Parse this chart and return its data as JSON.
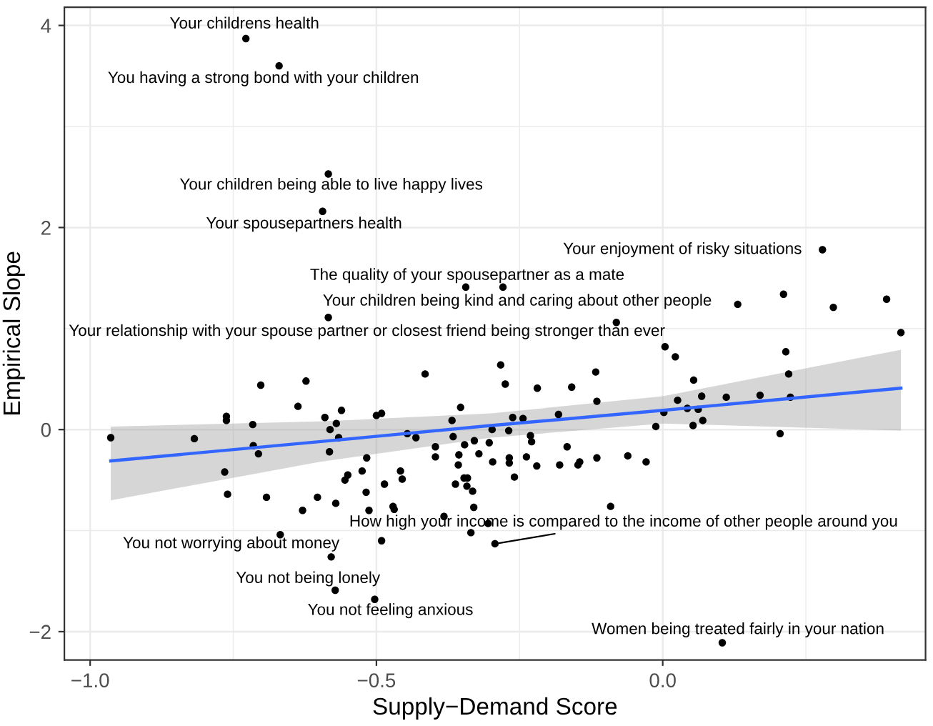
{
  "chart_data": {
    "type": "scatter",
    "xlabel": "Supply−Demand Score",
    "ylabel": "Empirical Slope",
    "xlim": [
      -1.045,
      0.459
    ],
    "ylim": [
      -2.28,
      4.18
    ],
    "xticks": [
      {
        "value": -1.0,
        "label": "−1.0"
      },
      {
        "value": -0.75,
        "label": null
      },
      {
        "value": -0.5,
        "label": "−0.5"
      },
      {
        "value": -0.25,
        "label": null
      },
      {
        "value": 0.0,
        "label": "0.0"
      },
      {
        "value": 0.25,
        "label": null
      }
    ],
    "yticks": [
      {
        "value": -2,
        "label": "−2"
      },
      {
        "value": -1,
        "label": null
      },
      {
        "value": 0,
        "label": "0"
      },
      {
        "value": 1,
        "label": null
      },
      {
        "value": 2,
        "label": "2"
      },
      {
        "value": 3,
        "label": null
      },
      {
        "value": 4,
        "label": "4"
      }
    ],
    "grid": true,
    "marker": "circle",
    "series": [
      {
        "color": "#000000",
        "x": [
          -0.964,
          -0.818,
          -0.762,
          -0.762,
          -0.765,
          -0.76,
          -0.702,
          -0.716,
          -0.715,
          -0.706,
          -0.692,
          -0.668,
          -0.637,
          -0.629,
          -0.623,
          -0.603,
          -0.59,
          -0.581,
          -0.582,
          -0.579,
          -0.57,
          -0.566,
          -0.561,
          -0.571,
          -0.555,
          -0.55,
          -0.572,
          -0.525,
          -0.517,
          -0.518,
          -0.513,
          -0.503,
          -0.5,
          -0.491,
          -0.491,
          -0.486,
          -0.471,
          -0.469,
          -0.458,
          -0.455,
          -0.446,
          -0.431,
          -0.415,
          -0.397,
          -0.397,
          -0.382,
          -0.368,
          -0.366,
          -0.353,
          -0.356,
          -0.357,
          -0.362,
          -0.346,
          -0.347,
          -0.341,
          -0.342,
          -0.332,
          -0.329,
          -0.33,
          -0.321,
          -0.335,
          -0.303,
          -0.305,
          -0.298,
          -0.297,
          -0.293,
          -0.283,
          -0.275,
          -0.219,
          -0.159,
          -0.117,
          -0.115,
          -0.182,
          -0.262,
          -0.244,
          -0.269,
          -0.231,
          -0.229,
          -0.167,
          -0.268,
          -0.268,
          -0.259,
          -0.238,
          -0.22,
          -0.18,
          -0.148,
          -0.145,
          -0.115,
          -0.091,
          -0.061,
          -0.029,
          -0.012,
          0.002,
          0.026,
          0.043,
          0.054,
          0.053,
          0.062,
          0.068,
          0.07,
          0.111,
          0.17,
          0.104,
          0.004,
          0.022,
          0.215,
          0.22,
          0.223,
          0.205,
          0.416,
          -0.728,
          -0.67,
          -0.584,
          -0.594,
          -0.344,
          -0.279,
          -0.584,
          -0.081,
          0.279,
          0.131,
          0.211,
          0.298,
          0.391
        ],
        "values": [
          -0.08,
          -0.09,
          0.13,
          0.09,
          -0.42,
          -0.64,
          0.44,
          0.05,
          -0.16,
          -0.24,
          -0.67,
          -1.04,
          0.23,
          -0.8,
          0.48,
          -0.67,
          0.12,
          0.0,
          -0.22,
          -1.26,
          0.06,
          -0.08,
          0.19,
          -0.73,
          -0.5,
          -0.45,
          -1.59,
          -0.41,
          -0.28,
          -0.62,
          -0.8,
          -1.68,
          0.14,
          0.16,
          -1.1,
          -0.54,
          -0.76,
          -0.79,
          -0.41,
          -0.49,
          -0.04,
          -0.08,
          0.55,
          -0.17,
          -0.27,
          -0.86,
          0.09,
          -0.07,
          0.22,
          -0.25,
          -0.35,
          -0.54,
          -0.15,
          -0.48,
          -0.48,
          -0.56,
          -0.61,
          -0.11,
          -0.77,
          -0.24,
          -1.02,
          -0.13,
          -0.93,
          0.0,
          -0.32,
          -1.13,
          0.64,
          0.45,
          0.41,
          0.42,
          0.57,
          0.28,
          0.15,
          0.12,
          0.11,
          -0.01,
          -0.06,
          -0.12,
          -0.17,
          -0.28,
          -0.33,
          -0.47,
          -0.27,
          -0.36,
          -0.35,
          -0.35,
          -0.32,
          -0.28,
          -0.76,
          -0.26,
          -0.32,
          0.03,
          0.17,
          0.29,
          0.21,
          0.49,
          0.04,
          0.2,
          0.33,
          0.09,
          0.32,
          0.34,
          -2.11,
          0.82,
          0.72,
          0.77,
          0.55,
          0.32,
          -0.04,
          0.96,
          3.87,
          3.6,
          2.53,
          2.16,
          1.41,
          1.41,
          1.11,
          1.06,
          1.78,
          1.24,
          1.34,
          1.21,
          1.29
        ]
      },
      {
        "type": "line",
        "marker": "none",
        "color": "#3366ff",
        "x": [
          -0.964,
          -0.6,
          -0.3,
          0.0,
          0.416
        ],
        "values": [
          -0.31,
          -0.12,
          0.04,
          0.19,
          0.41
        ],
        "lower": [
          -0.7,
          -0.32,
          -0.08,
          0.06,
          -0.01
        ],
        "upper": [
          0.03,
          0.08,
          0.16,
          0.33,
          0.79
        ]
      }
    ],
    "annotations": [
      {
        "text": "Your childrens health",
        "x": -0.728,
        "y": 3.87
      },
      {
        "text": "You having a strong bond with your children",
        "x": -0.67,
        "y": 3.6
      },
      {
        "text": "Your children being able to live happy lives",
        "x": -0.584,
        "y": 2.53
      },
      {
        "text": "Your spousepartners health",
        "x": -0.594,
        "y": 2.16
      },
      {
        "text": "The quality of your spousepartner as a mate",
        "x": -0.344,
        "y": 1.41
      },
      {
        "text": "Your children being kind and caring about other people",
        "x": -0.279,
        "y": 1.41
      },
      {
        "text": "Your relationship with your spouse partner or closest friend being stronger than ever",
        "x": -0.584,
        "y": 1.11
      },
      {
        "text": "Your enjoyment of risky situations",
        "x": 0.279,
        "y": 1.78
      },
      {
        "text": "How high your income is compared to the income of other people around you",
        "x": -0.293,
        "y": -1.13
      },
      {
        "text": "You not worrying about money",
        "x": -0.579,
        "y": -1.26
      },
      {
        "text": "You not being lonely",
        "x": -0.572,
        "y": -1.59
      },
      {
        "text": "You not feeling anxious",
        "x": -0.503,
        "y": -1.68
      },
      {
        "text": "Women being treated fairly in your nation",
        "x": 0.104,
        "y": -2.11
      }
    ]
  }
}
